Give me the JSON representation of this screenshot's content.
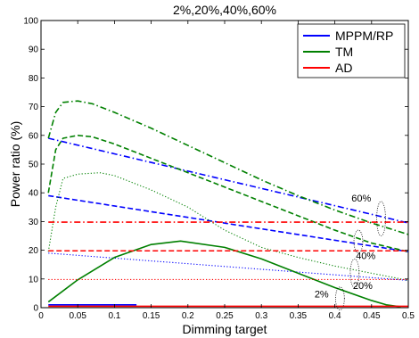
{
  "chart_data": {
    "type": "line",
    "title": "2%,20%,40%,60%",
    "xlabel": "Dimming target",
    "ylabel": "Power ratio (%)",
    "xlim": [
      0,
      0.5
    ],
    "ylim": [
      0,
      100
    ],
    "xticks": [
      0,
      0.05,
      0.1,
      0.15,
      0.2,
      0.25,
      0.3,
      0.35,
      0.4,
      0.45,
      0.5
    ],
    "xtick_labels": [
      "0",
      "0.05",
      "0.1",
      "0.15",
      "0.2",
      "0.25",
      "0.3",
      "0.35",
      "0.4",
      "0.45",
      "0.5"
    ],
    "yticks": [
      0,
      10,
      20,
      30,
      40,
      50,
      60,
      70,
      80,
      90,
      100
    ],
    "ytick_labels": [
      "0",
      "10",
      "20",
      "30",
      "40",
      "50",
      "60",
      "70",
      "80",
      "90",
      "100"
    ],
    "grid": false,
    "legend_position": "top-right",
    "legend": [
      {
        "label": "MPPM/RP",
        "color": "#0000ff"
      },
      {
        "label": "TM",
        "color": "#008000"
      },
      {
        "label": "AD",
        "color": "#ff0000"
      }
    ],
    "series": [
      {
        "group": "MPPM/RP",
        "color": "#0000ff",
        "style": "solid",
        "x": [
          0.01,
          0.13
        ],
        "y": [
          1.0,
          1.0
        ]
      },
      {
        "group": "MPPM/RP",
        "color": "#0000ff",
        "style": "dotted",
        "x": [
          0.01,
          0.5
        ],
        "y": [
          19.0,
          9.5
        ]
      },
      {
        "group": "MPPM/RP",
        "color": "#0000ff",
        "style": "dashed",
        "x": [
          0.01,
          0.5
        ],
        "y": [
          39.0,
          19.5
        ]
      },
      {
        "group": "MPPM/RP",
        "color": "#0000ff",
        "style": "dashdot",
        "x": [
          0.01,
          0.5
        ],
        "y": [
          59.0,
          29.5
        ]
      },
      {
        "group": "TM",
        "color": "#008000",
        "style": "solid",
        "x": [
          0.01,
          0.05,
          0.1,
          0.15,
          0.19,
          0.25,
          0.3,
          0.35,
          0.4,
          0.45,
          0.47,
          0.49
        ],
        "y": [
          2.0,
          9.7,
          17.5,
          22.0,
          23.2,
          21.0,
          17.0,
          12.0,
          7.0,
          2.5,
          1.0,
          0.3
        ]
      },
      {
        "group": "TM",
        "color": "#008000",
        "style": "dotted",
        "x": [
          0.01,
          0.02,
          0.03,
          0.05,
          0.08,
          0.1,
          0.15,
          0.2,
          0.25,
          0.3,
          0.35,
          0.4,
          0.45,
          0.5
        ],
        "y": [
          19.5,
          35.0,
          45.0,
          46.5,
          47.0,
          46.0,
          41.0,
          35.0,
          27.0,
          21.0,
          17.5,
          14.5,
          12.0,
          9.5
        ]
      },
      {
        "group": "TM",
        "color": "#008000",
        "style": "dashed",
        "x": [
          0.01,
          0.02,
          0.03,
          0.05,
          0.07,
          0.1,
          0.15,
          0.2,
          0.25,
          0.3,
          0.35,
          0.4,
          0.45,
          0.5
        ],
        "y": [
          40.0,
          55.0,
          59.0,
          60.0,
          59.5,
          57.0,
          52.0,
          47.0,
          42.0,
          37.0,
          32.0,
          27.0,
          22.5,
          19.5
        ]
      },
      {
        "group": "TM",
        "color": "#008000",
        "style": "dashdot",
        "x": [
          0.01,
          0.02,
          0.03,
          0.05,
          0.07,
          0.1,
          0.15,
          0.2,
          0.25,
          0.3,
          0.35,
          0.4,
          0.45,
          0.5
        ],
        "y": [
          59.0,
          68.0,
          71.5,
          72.0,
          71.0,
          68.0,
          62.5,
          56.5,
          50.5,
          44.5,
          39.0,
          34.0,
          29.5,
          25.5
        ]
      },
      {
        "group": "AD",
        "color": "#ff0000",
        "style": "solid",
        "x": [
          0.01,
          0.5
        ],
        "y": [
          0.5,
          0.5
        ]
      },
      {
        "group": "AD",
        "color": "#ff0000",
        "style": "dotted",
        "x": [
          0.01,
          0.5
        ],
        "y": [
          9.8,
          9.8
        ]
      },
      {
        "group": "AD",
        "color": "#ff0000",
        "style": "dashed",
        "x": [
          0.01,
          0.5
        ],
        "y": [
          19.8,
          19.8
        ]
      },
      {
        "group": "AD",
        "color": "#ff0000",
        "style": "dashdot",
        "x": [
          0.01,
          0.5
        ],
        "y": [
          29.8,
          29.8
        ]
      }
    ],
    "annotations": [
      {
        "text": "2%",
        "x": 0.382,
        "y": 3.5
      },
      {
        "text": "20%",
        "x": 0.438,
        "y": 6.5
      },
      {
        "text": "40%",
        "x": 0.442,
        "y": 17.0
      },
      {
        "text": "60%",
        "x": 0.436,
        "y": 37.0
      }
    ],
    "ellipses": [
      {
        "cx": 0.407,
        "cy": 3.2,
        "rx": 0.006,
        "ry": 4.0
      },
      {
        "cx": 0.427,
        "cy": 12.0,
        "rx": 0.006,
        "ry": 5.0
      },
      {
        "cx": 0.432,
        "cy": 23.0,
        "rx": 0.006,
        "ry": 4.0
      },
      {
        "cx": 0.463,
        "cy": 31.0,
        "rx": 0.006,
        "ry": 6.0
      }
    ]
  }
}
